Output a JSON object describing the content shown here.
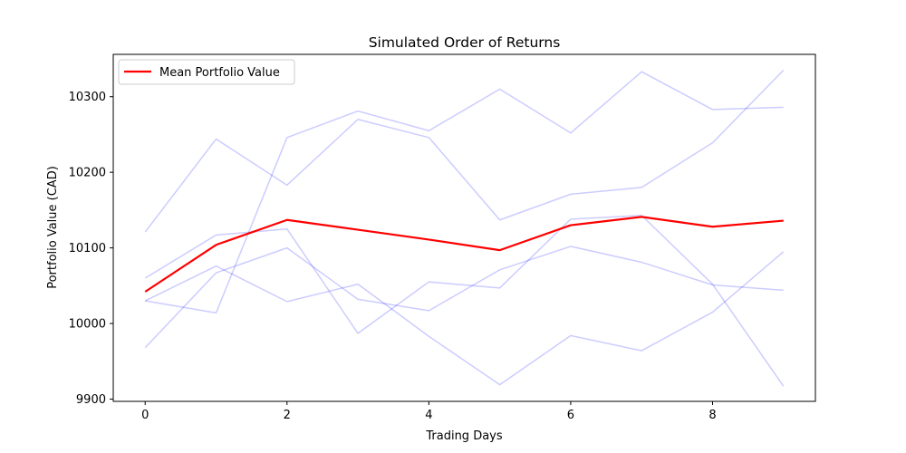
{
  "chart_data": {
    "type": "line",
    "title": "Simulated Order of Returns",
    "xlabel": "Trading Days",
    "ylabel": "Portfolio Value (CAD)",
    "xlim": [
      -0.45,
      9.45
    ],
    "ylim": [
      9897,
      10356
    ],
    "xticks": [
      0,
      2,
      4,
      6,
      8
    ],
    "yticks": [
      9900,
      10000,
      10100,
      10200,
      10300
    ],
    "x": [
      0,
      1,
      2,
      3,
      4,
      5,
      6,
      7,
      8,
      9
    ],
    "grid": false,
    "legend_position": "top-left",
    "series": [
      {
        "values": [
          10121,
          10244,
          10183,
          10270,
          10246,
          10137,
          10171,
          10180,
          10239,
          10335
        ],
        "color": "#0000ff",
        "opacity": 0.2
      },
      {
        "values": [
          10060,
          10117,
          10125,
          9987,
          10055,
          10047,
          10138,
          10143,
          10052,
          9917
        ],
        "color": "#0000ff",
        "opacity": 0.2
      },
      {
        "values": [
          10030,
          10014,
          10246,
          10281,
          10255,
          10310,
          10252,
          10333,
          10283,
          10286
        ],
        "color": "#0000ff",
        "opacity": 0.2
      },
      {
        "values": [
          9968,
          10067,
          10100,
          10032,
          10017,
          10071,
          10102,
          10081,
          10051,
          10044
        ],
        "color": "#0000ff",
        "opacity": 0.2
      },
      {
        "values": [
          10030,
          10076,
          10029,
          10052,
          9983,
          9919,
          9984,
          9964,
          10015,
          10095
        ],
        "color": "#0000ff",
        "opacity": 0.2
      },
      {
        "name": "Mean Portfolio Value",
        "values": [
          10042,
          10104,
          10137,
          10124,
          10111,
          10097,
          10130,
          10141,
          10128,
          10136
        ],
        "color": "#ff0000",
        "opacity": 1.0
      }
    ]
  }
}
